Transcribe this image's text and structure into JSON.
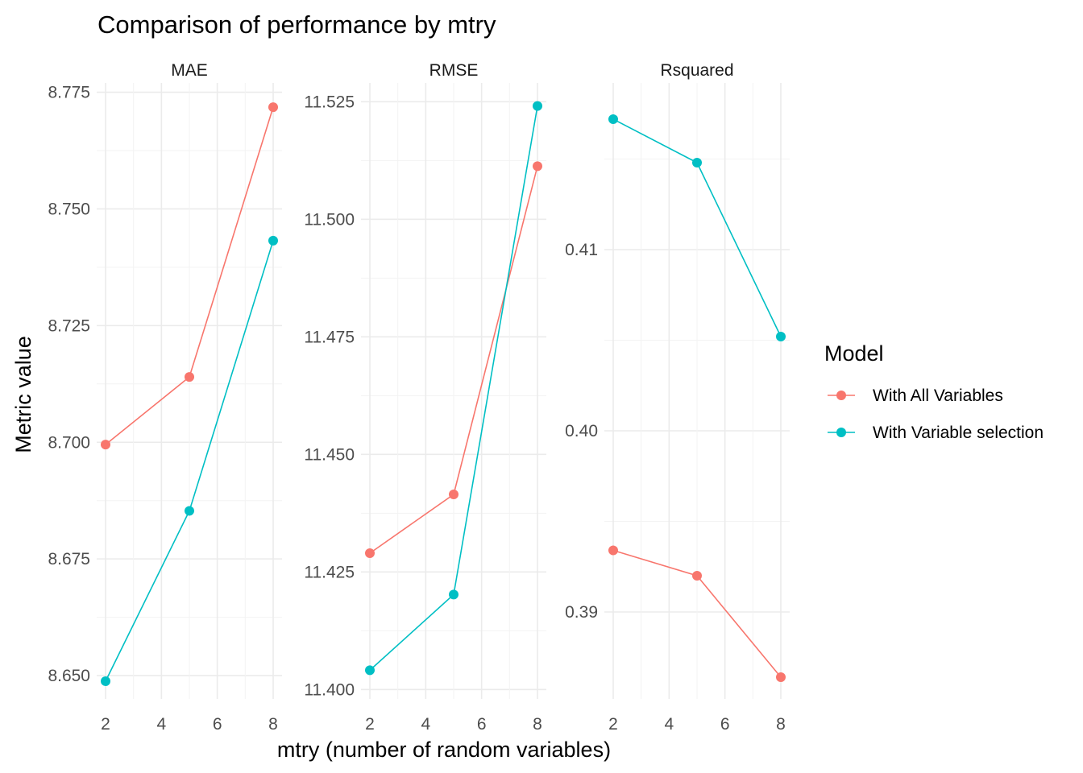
{
  "chart_data": {
    "type": "line",
    "title": "Comparison of performance by mtry",
    "xlabel": "mtry (number of random variables)",
    "ylabel": "Metric value",
    "x": [
      2,
      5,
      8
    ],
    "xlim": [
      2,
      8
    ],
    "x_ticks": [
      "2",
      "4",
      "6",
      "8"
    ],
    "grid": true,
    "legend": {
      "title": "Model",
      "placement": "right",
      "entries": [
        "With All Variables",
        "With Variable selection"
      ]
    },
    "colors": {
      "With All Variables": "#F8766D",
      "With Variable selection": "#00BFC4"
    },
    "panels": [
      {
        "name": "MAE",
        "ylim": [
          8.645,
          8.777
        ],
        "y_ticks": [
          "8.650",
          "8.675",
          "8.700",
          "8.725",
          "8.750",
          "8.775"
        ],
        "series": [
          {
            "name": "With All Variables",
            "values": [
              8.6995,
              8.714,
              8.7718
            ]
          },
          {
            "name": "With Variable selection",
            "values": [
              8.6488,
              8.6853,
              8.7432
            ]
          }
        ]
      },
      {
        "name": "RMSE",
        "ylim": [
          11.398,
          11.529
        ],
        "y_ticks": [
          "11.400",
          "11.425",
          "11.450",
          "11.475",
          "11.500",
          "11.525"
        ],
        "series": [
          {
            "name": "With All Variables",
            "values": [
              11.429,
              11.4415,
              11.5113
            ]
          },
          {
            "name": "With Variable selection",
            "values": [
              11.4041,
              11.4202,
              11.5241
            ]
          }
        ]
      },
      {
        "name": "Rsquared",
        "ylim": [
          0.3852,
          0.4192
        ],
        "y_ticks": [
          "0.39",
          "0.40",
          "0.41"
        ],
        "series": [
          {
            "name": "With All Variables",
            "values": [
              0.3934,
              0.392,
              0.3864
            ]
          },
          {
            "name": "With Variable selection",
            "values": [
              0.4172,
              0.4148,
              0.4052
            ]
          }
        ]
      }
    ]
  }
}
